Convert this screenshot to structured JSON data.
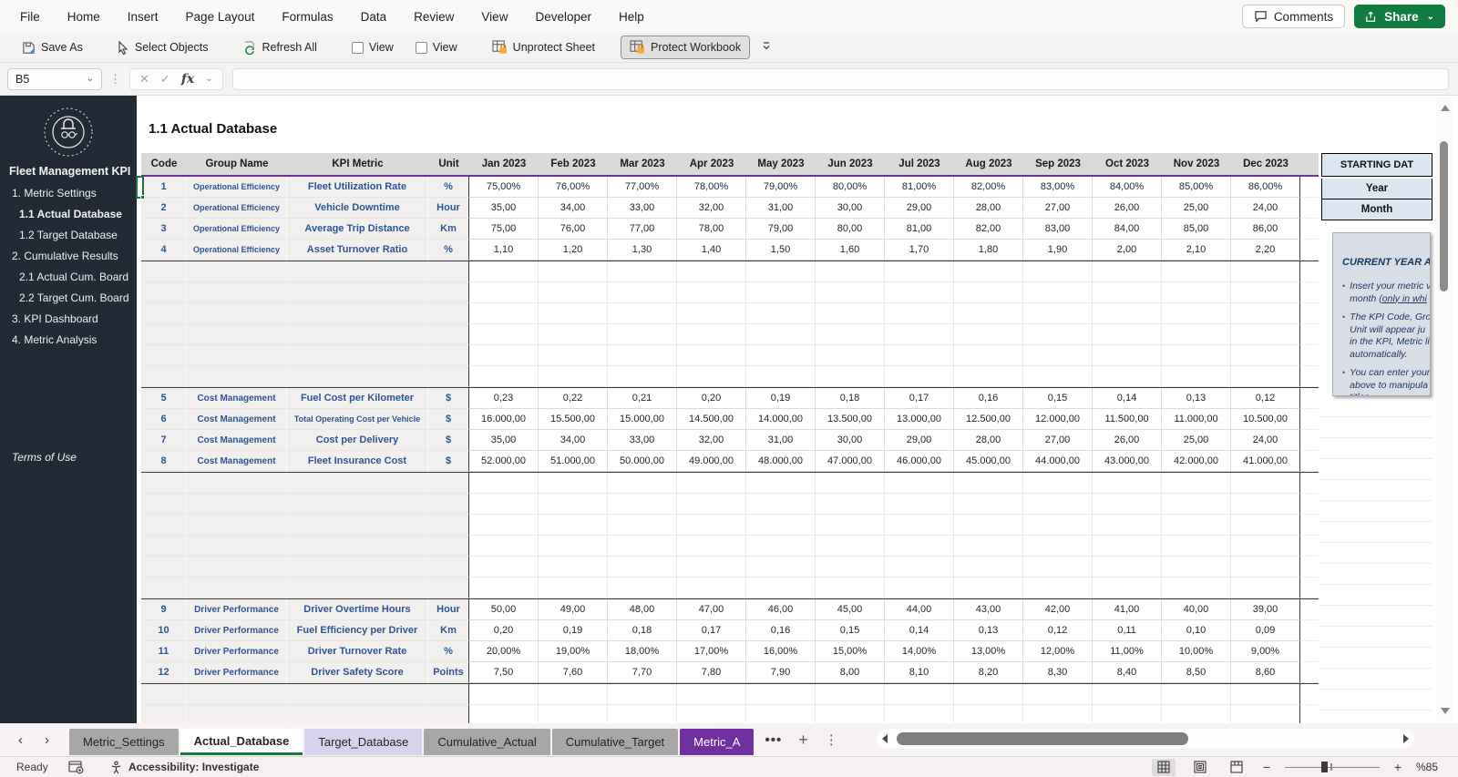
{
  "menu": {
    "items": [
      "File",
      "Home",
      "Insert",
      "Page Layout",
      "Formulas",
      "Data",
      "Review",
      "View",
      "Developer",
      "Help"
    ]
  },
  "top_actions": {
    "comments": "Comments",
    "share": "Share"
  },
  "toolbar": {
    "save_as": "Save As",
    "select_objects": "Select Objects",
    "refresh_all": "Refresh All",
    "view_checkbox_1": "View",
    "view_checkbox_2": "View",
    "unprotect_sheet": "Unprotect Sheet",
    "protect_workbook": "Protect Workbook"
  },
  "formula_bar": {
    "name_box": "B5",
    "fx": "fx",
    "formula_value": ""
  },
  "sidebar": {
    "title": "Fleet Management KPI",
    "items": [
      {
        "label": "1. Metric Settings",
        "indent": 0,
        "active": false
      },
      {
        "label": "1.1 Actual Database",
        "indent": 1,
        "active": true
      },
      {
        "label": "1.2 Target Database",
        "indent": 1,
        "active": false
      },
      {
        "label": "2. Cumulative Results",
        "indent": 0,
        "active": false
      },
      {
        "label": "2.1 Actual Cum. Board",
        "indent": 1,
        "active": false
      },
      {
        "label": "2.2 Target Cum. Board",
        "indent": 1,
        "active": false
      },
      {
        "label": "3. KPI Dashboard",
        "indent": 0,
        "active": false
      },
      {
        "label": "4. Metric Analysis",
        "indent": 0,
        "active": false
      }
    ],
    "footer": "Terms of Use"
  },
  "sheet": {
    "title": "1.1 Actual Database"
  },
  "table": {
    "columns": [
      "Code",
      "Group Name",
      "KPI Metric",
      "Unit"
    ],
    "months": [
      "Jan 2023",
      "Feb 2023",
      "Mar 2023",
      "Apr 2023",
      "May 2023",
      "Jun 2023",
      "Jul 2023",
      "Aug 2023",
      "Sep 2023",
      "Oct 2023",
      "Nov 2023",
      "Dec 2023"
    ],
    "sections": [
      {
        "rows": [
          {
            "code": "1",
            "group": "Operational Efficiency",
            "metric": "Fleet Utilization Rate",
            "unit": "%",
            "values": [
              "75,00%",
              "76,00%",
              "77,00%",
              "78,00%",
              "79,00%",
              "80,00%",
              "81,00%",
              "82,00%",
              "83,00%",
              "84,00%",
              "85,00%",
              "86,00%"
            ]
          },
          {
            "code": "2",
            "group": "Operational Efficiency",
            "metric": "Vehicle Downtime",
            "unit": "Hour",
            "values": [
              "35,00",
              "34,00",
              "33,00",
              "32,00",
              "31,00",
              "30,00",
              "29,00",
              "28,00",
              "27,00",
              "26,00",
              "25,00",
              "24,00"
            ]
          },
          {
            "code": "3",
            "group": "Operational Efficiency",
            "metric": "Average Trip Distance",
            "unit": "Km",
            "values": [
              "75,00",
              "76,00",
              "77,00",
              "78,00",
              "79,00",
              "80,00",
              "81,00",
              "82,00",
              "83,00",
              "84,00",
              "85,00",
              "86,00"
            ]
          },
          {
            "code": "4",
            "group": "Operational Efficiency",
            "metric": "Asset Turnover Ratio",
            "unit": "%",
            "values": [
              "1,10",
              "1,20",
              "1,30",
              "1,40",
              "1,50",
              "1,60",
              "1,70",
              "1,80",
              "1,90",
              "2,00",
              "2,10",
              "2,20"
            ]
          }
        ]
      },
      {
        "rows": [
          {
            "code": "5",
            "group": "Cost Management",
            "metric": "Fuel Cost per Kilometer",
            "unit": "$",
            "values": [
              "0,23",
              "0,22",
              "0,21",
              "0,20",
              "0,19",
              "0,18",
              "0,17",
              "0,16",
              "0,15",
              "0,14",
              "0,13",
              "0,12"
            ]
          },
          {
            "code": "6",
            "group": "Cost Management",
            "metric": "Total Operating Cost per Vehicle",
            "unit": "$",
            "values": [
              "16.000,00",
              "15.500,00",
              "15.000,00",
              "14.500,00",
              "14.000,00",
              "13.500,00",
              "13.000,00",
              "12.500,00",
              "12.000,00",
              "11.500,00",
              "11.000,00",
              "10.500,00"
            ]
          },
          {
            "code": "7",
            "group": "Cost Management",
            "metric": "Cost per Delivery",
            "unit": "$",
            "values": [
              "35,00",
              "34,00",
              "33,00",
              "32,00",
              "31,00",
              "30,00",
              "29,00",
              "28,00",
              "27,00",
              "26,00",
              "25,00",
              "24,00"
            ]
          },
          {
            "code": "8",
            "group": "Cost Management",
            "metric": "Fleet Insurance Cost",
            "unit": "$",
            "values": [
              "52.000,00",
              "51.000,00",
              "50.000,00",
              "49.000,00",
              "48.000,00",
              "47.000,00",
              "46.000,00",
              "45.000,00",
              "44.000,00",
              "43.000,00",
              "42.000,00",
              "41.000,00"
            ]
          }
        ]
      },
      {
        "rows": [
          {
            "code": "9",
            "group": "Driver Performance",
            "metric": "Driver Overtime Hours",
            "unit": "Hour",
            "values": [
              "50,00",
              "49,00",
              "48,00",
              "47,00",
              "46,00",
              "45,00",
              "44,00",
              "43,00",
              "42,00",
              "41,00",
              "40,00",
              "39,00"
            ]
          },
          {
            "code": "10",
            "group": "Driver Performance",
            "metric": "Fuel Efficiency per Driver",
            "unit": "Km",
            "values": [
              "0,20",
              "0,19",
              "0,18",
              "0,17",
              "0,16",
              "0,15",
              "0,14",
              "0,13",
              "0,12",
              "0,11",
              "0,10",
              "0,09"
            ]
          },
          {
            "code": "11",
            "group": "Driver Performance",
            "metric": "Driver Turnover Rate",
            "unit": "%",
            "values": [
              "20,00%",
              "19,00%",
              "18,00%",
              "17,00%",
              "16,00%",
              "15,00%",
              "14,00%",
              "13,00%",
              "12,00%",
              "11,00%",
              "10,00%",
              "9,00%"
            ]
          },
          {
            "code": "12",
            "group": "Driver Performance",
            "metric": "Driver Safety Score",
            "unit": "Points",
            "values": [
              "7,50",
              "7,60",
              "7,70",
              "7,80",
              "7,90",
              "8,00",
              "8,10",
              "8,20",
              "8,30",
              "8,40",
              "8,50",
              "8,60"
            ]
          }
        ]
      }
    ]
  },
  "right_panel": {
    "starting_date_header": "STARTING DAT",
    "year_label": "Year",
    "month_label": "Month",
    "note": {
      "title": "CURRENT YEAR ACTU",
      "bullets": [
        {
          "lines": [
            "Insert your metric v",
            {
              "pre": "month ",
              "underlined": "(only in whi"
            }
          ]
        },
        {
          "lines": [
            "The KPI Code, Grou",
            "Unit will appear ju",
            "in the KPI, Metric li",
            "automatically."
          ]
        },
        {
          "lines": [
            "You can enter your",
            "above to manipula",
            "titles."
          ]
        }
      ]
    }
  },
  "sheet_tabs": {
    "tabs": [
      {
        "label": "Metric_Settings",
        "style": "gray"
      },
      {
        "label": "Actual_Database",
        "style": "active"
      },
      {
        "label": "Target_Database",
        "style": "lavender"
      },
      {
        "label": "Cumulative_Actual",
        "style": "gray"
      },
      {
        "label": "Cumulative_Target",
        "style": "gray"
      },
      {
        "label": "Metric_A",
        "style": "purple"
      }
    ]
  },
  "status_bar": {
    "ready": "Ready",
    "accessibility": "Accessibility: Investigate",
    "zoom_level": "%85"
  },
  "colors": {
    "accent_green": "#107c41",
    "sidebar_dark": "#222b35",
    "header_purple": "#7030a0",
    "light_blue_cell": "#dce6f1",
    "blue_text": "#2f5496",
    "tab_purple": "#7030a0",
    "tab_lavender": "#d8d3ec"
  }
}
